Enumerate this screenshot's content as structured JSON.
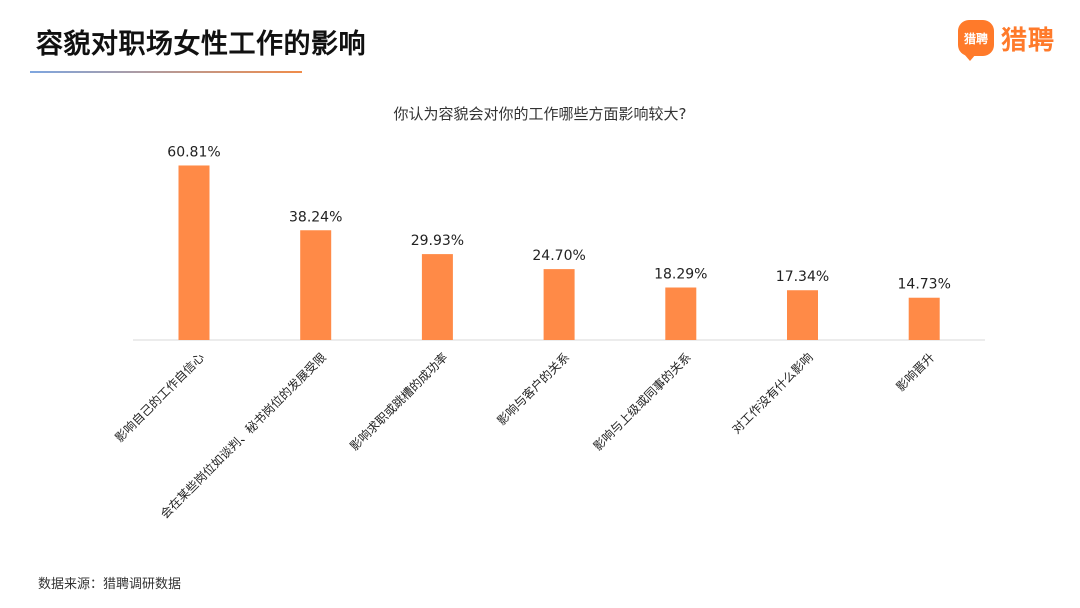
{
  "header": {
    "title": "容貌对职场女性工作的影响",
    "logo_badge": "猎聘",
    "logo_text": "猎聘"
  },
  "colors": {
    "bar": "#ff8a47",
    "accent": "#ff7a2a",
    "axis": "#d9d9d9"
  },
  "chart_data": {
    "type": "bar",
    "title": "你认为容貌会对你的工作哪些方面影响较大?",
    "xlabel": "",
    "ylabel": "",
    "unit": "%",
    "grid": false,
    "legend": "none",
    "categories": [
      "影响自己的工作自信心",
      "会在某些岗位如谈判、秘书岗位的发展受限",
      "影响求职或跳槽的成功率",
      "影响与客户的关系",
      "影响与上级或同事的关系",
      "对工作没有什么影响",
      "影响晋升"
    ],
    "values": [
      60.81,
      38.24,
      29.93,
      24.7,
      18.29,
      17.34,
      14.73
    ],
    "value_labels": [
      "60.81%",
      "38.24%",
      "29.93%",
      "24.70%",
      "18.29%",
      "17.34%",
      "14.73%"
    ],
    "ylim": [
      0,
      65
    ]
  },
  "footer": {
    "source": "数据来源：猎聘调研数据"
  }
}
